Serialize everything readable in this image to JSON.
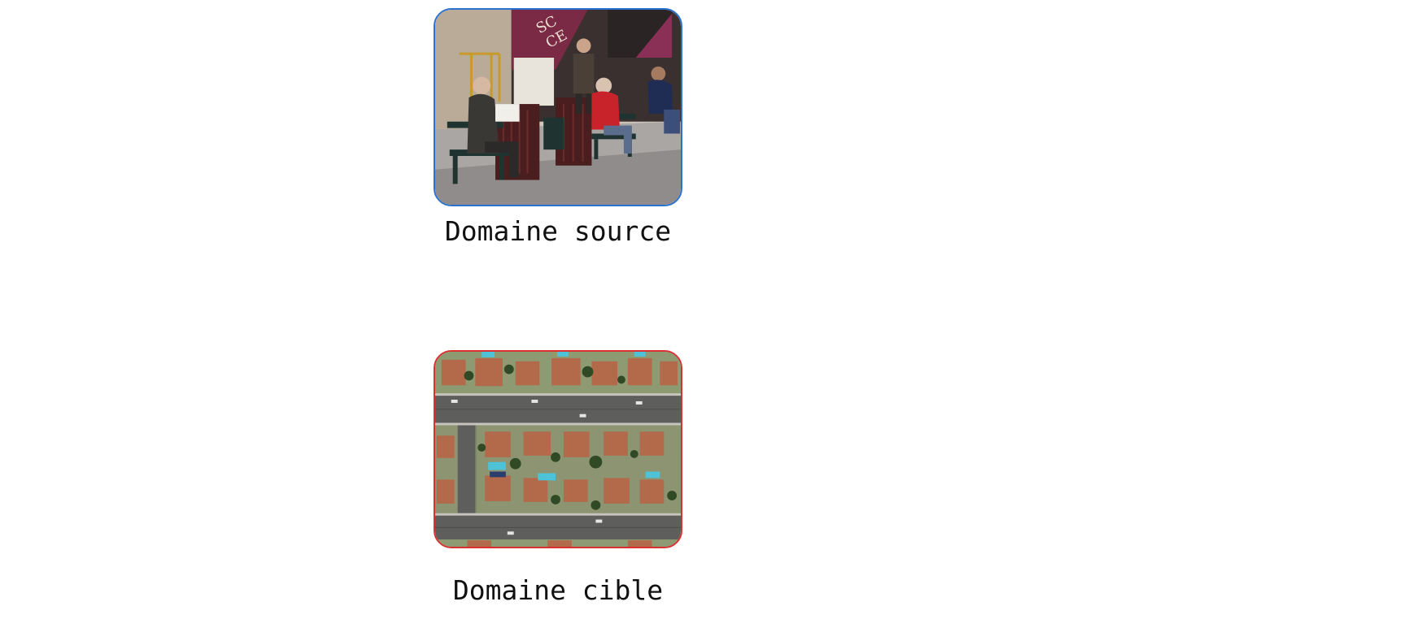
{
  "source": {
    "caption": "Domaine source",
    "border_color": "#2a72d0",
    "image": "street-scene-people-on-benches"
  },
  "target": {
    "caption": "Domaine cible",
    "border_color": "#d93131",
    "image": "aerial-view-suburban-houses"
  }
}
